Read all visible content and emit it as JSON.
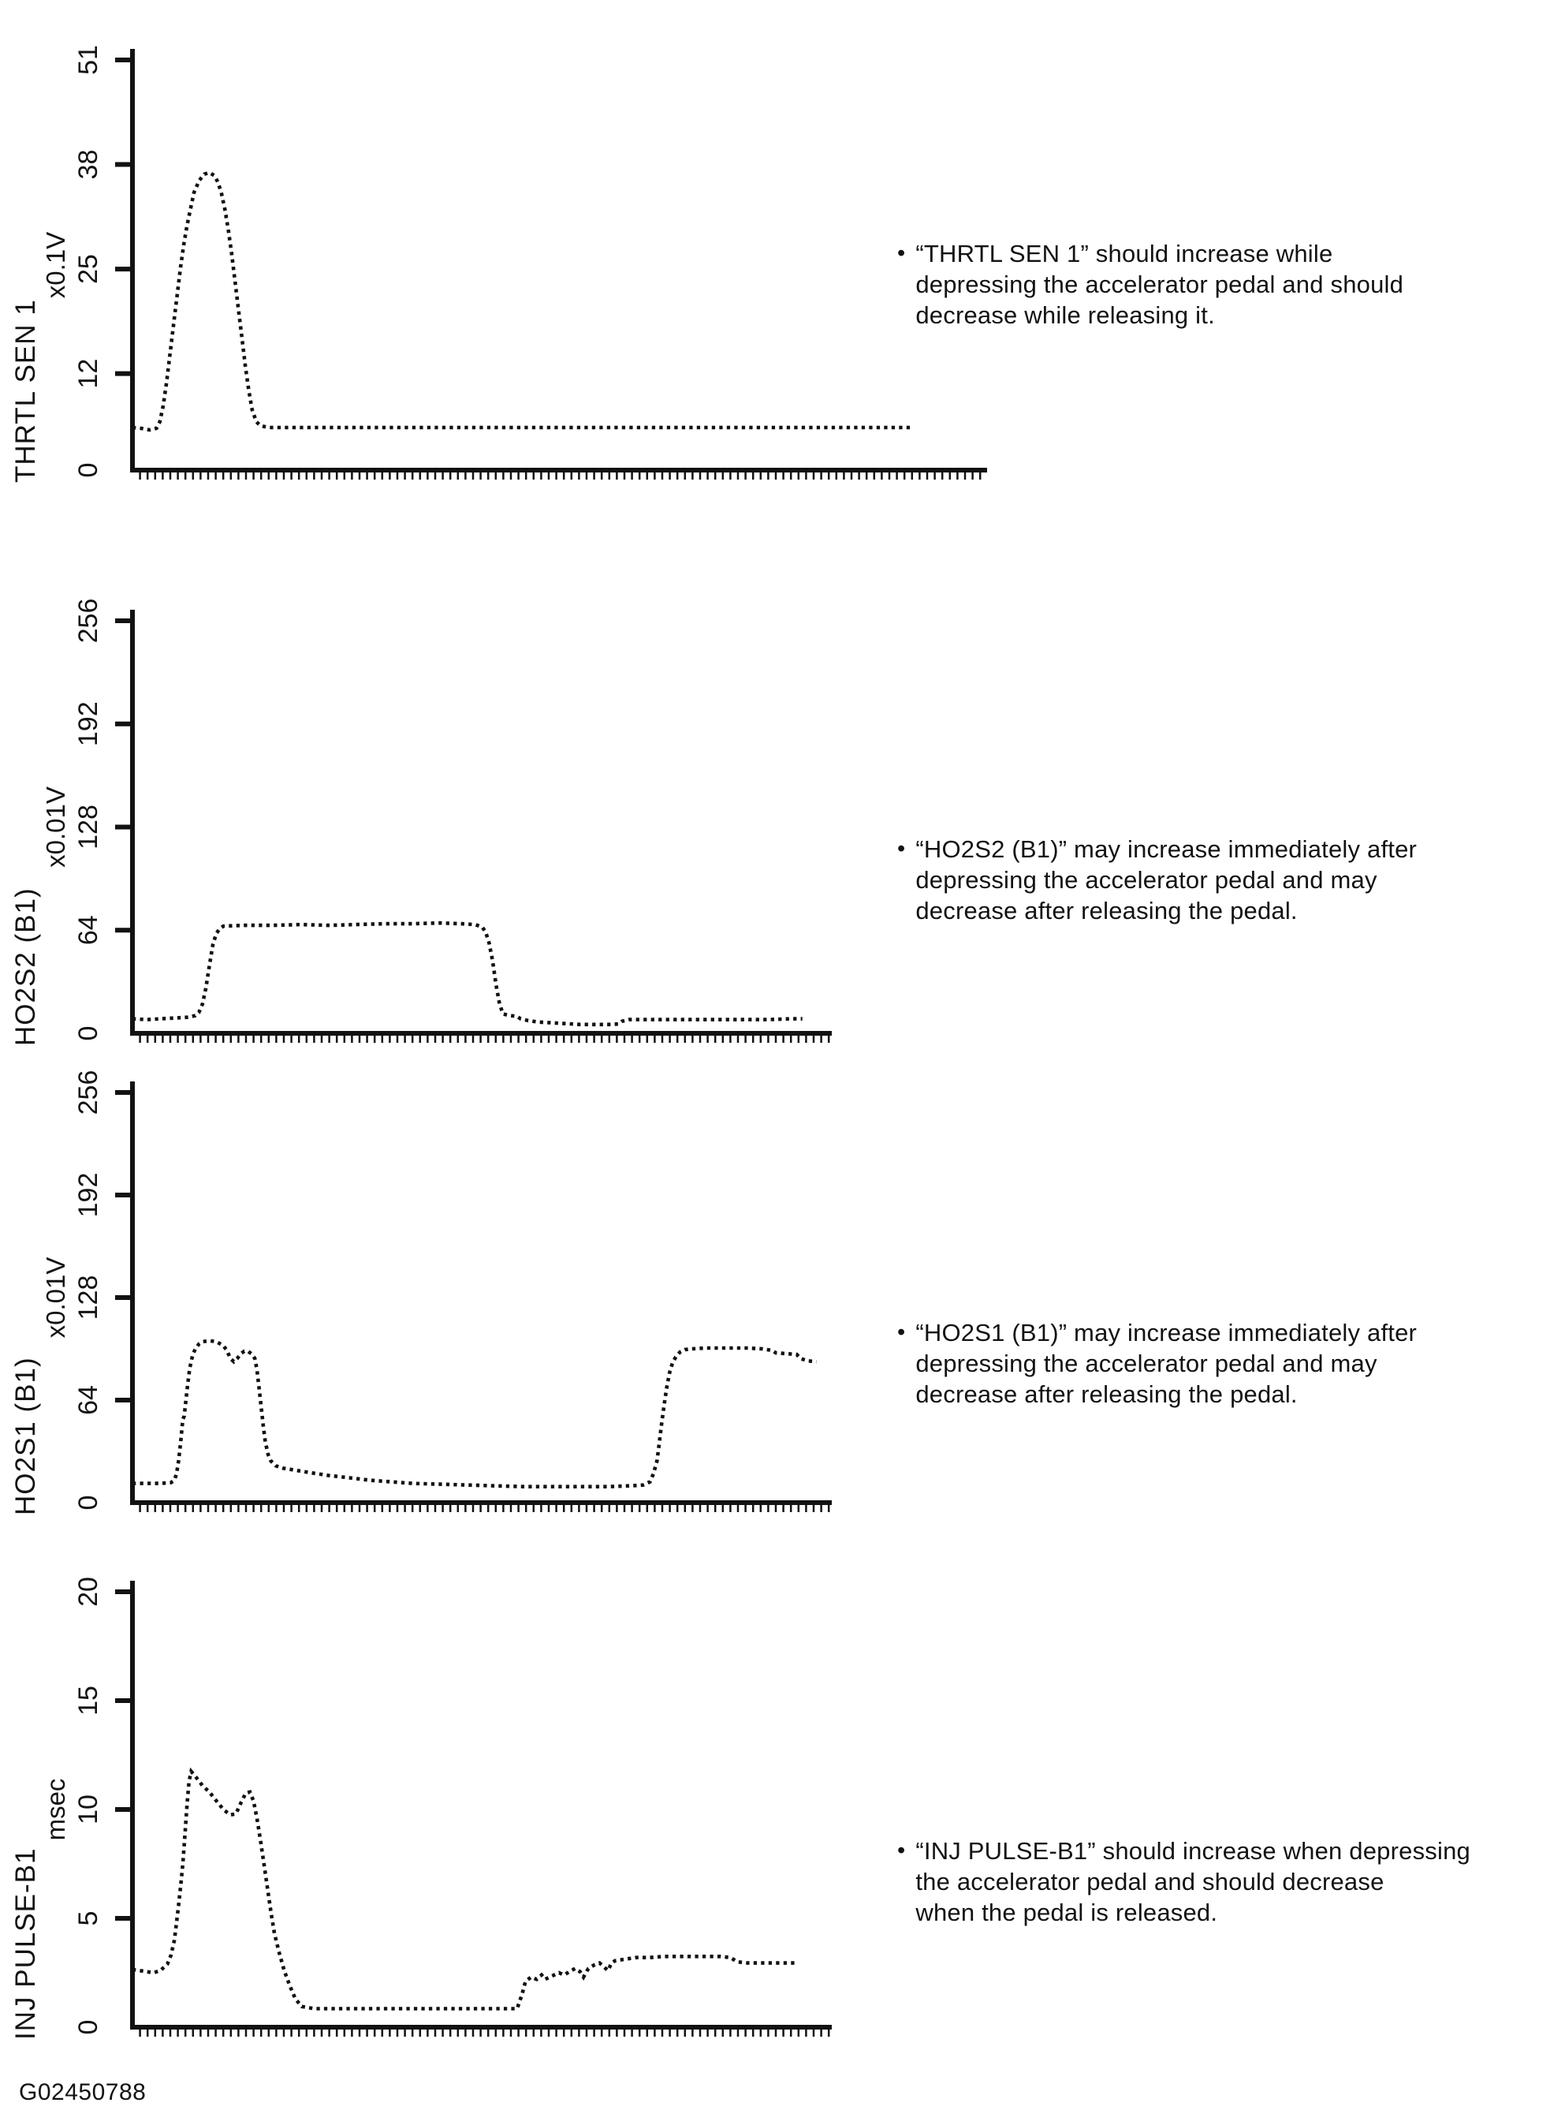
{
  "figure_code": "G02450788",
  "bullet_glyph": "•",
  "chart_data": [
    {
      "type": "line",
      "style": "dotted",
      "param": "THRTL SEN 1",
      "unit": "x0.1V",
      "ylabel": "THRTL SEN 1",
      "y_ticks": [
        0,
        12,
        25,
        38,
        51
      ],
      "ylim": [
        0,
        51
      ],
      "xlabel": "",
      "x_axis": "unlabeled time axis with minor ticks",
      "grid": "off",
      "annotation_lines": [
        "“THRTL SEN 1” should increase while",
        "depressing the accelerator pedal and should",
        "decrease while releasing it."
      ],
      "points": [
        [
          0,
          5.3
        ],
        [
          0.01,
          5.2
        ],
        [
          0.02,
          5.0
        ],
        [
          0.028,
          5.2
        ],
        [
          0.032,
          6
        ],
        [
          0.036,
          8
        ],
        [
          0.04,
          11
        ],
        [
          0.044,
          14.5
        ],
        [
          0.048,
          18
        ],
        [
          0.052,
          21.5
        ],
        [
          0.056,
          25
        ],
        [
          0.06,
          28
        ],
        [
          0.064,
          30.5
        ],
        [
          0.068,
          32.5
        ],
        [
          0.072,
          34.5
        ],
        [
          0.078,
          36
        ],
        [
          0.084,
          36.8
        ],
        [
          0.09,
          37
        ],
        [
          0.096,
          36.6
        ],
        [
          0.1,
          35.8
        ],
        [
          0.104,
          34.5
        ],
        [
          0.108,
          32.5
        ],
        [
          0.112,
          30
        ],
        [
          0.116,
          27
        ],
        [
          0.12,
          23.5
        ],
        [
          0.124,
          20
        ],
        [
          0.128,
          16.5
        ],
        [
          0.132,
          13
        ],
        [
          0.136,
          10
        ],
        [
          0.14,
          7.5
        ],
        [
          0.145,
          6
        ],
        [
          0.15,
          5.5
        ],
        [
          0.16,
          5.3
        ],
        [
          0.3,
          5.3
        ],
        [
          0.5,
          5.3
        ],
        [
          0.7,
          5.3
        ],
        [
          0.913,
          5.3
        ]
      ]
    },
    {
      "type": "line",
      "style": "dotted",
      "param": "HO2S2 (B1)",
      "unit": "x0.01V",
      "ylabel": "HO2S2 (B1)",
      "y_ticks": [
        0,
        64,
        128,
        192,
        256
      ],
      "ylim": [
        0,
        256
      ],
      "xlabel": "",
      "x_axis": "unlabeled time axis with minor ticks",
      "grid": "off",
      "annotation_lines": [
        "“HO2S2 (B1)” may increase immediately after",
        "depressing the accelerator pedal and may",
        "decrease after releasing the pedal."
      ],
      "points": [
        [
          0,
          9
        ],
        [
          0.02,
          8.5
        ],
        [
          0.04,
          9
        ],
        [
          0.06,
          9.5
        ],
        [
          0.08,
          10
        ],
        [
          0.09,
          11
        ],
        [
          0.095,
          13
        ],
        [
          0.1,
          18
        ],
        [
          0.105,
          28
        ],
        [
          0.11,
          42
        ],
        [
          0.115,
          55
        ],
        [
          0.12,
          62
        ],
        [
          0.125,
          65
        ],
        [
          0.13,
          66.5
        ],
        [
          0.16,
          67
        ],
        [
          0.2,
          67
        ],
        [
          0.24,
          67.5
        ],
        [
          0.28,
          67
        ],
        [
          0.32,
          67.5
        ],
        [
          0.36,
          68
        ],
        [
          0.4,
          68
        ],
        [
          0.44,
          68.5
        ],
        [
          0.47,
          68
        ],
        [
          0.49,
          67.5
        ],
        [
          0.5,
          66
        ],
        [
          0.505,
          63
        ],
        [
          0.51,
          56
        ],
        [
          0.515,
          45
        ],
        [
          0.52,
          30
        ],
        [
          0.525,
          18
        ],
        [
          0.53,
          12
        ],
        [
          0.54,
          11
        ],
        [
          0.55,
          10.5
        ],
        [
          0.555,
          9
        ],
        [
          0.565,
          8
        ],
        [
          0.58,
          7
        ],
        [
          0.6,
          6.5
        ],
        [
          0.62,
          6
        ],
        [
          0.64,
          5.5
        ],
        [
          0.66,
          5.5
        ],
        [
          0.68,
          5.5
        ],
        [
          0.695,
          5.8
        ],
        [
          0.7,
          7.5
        ],
        [
          0.71,
          8.5
        ],
        [
          0.73,
          8.5
        ],
        [
          0.76,
          8.5
        ],
        [
          0.79,
          8.5
        ],
        [
          0.82,
          8.5
        ],
        [
          0.85,
          8.5
        ],
        [
          0.88,
          8.5
        ],
        [
          0.91,
          8.5
        ],
        [
          0.94,
          9
        ],
        [
          0.958,
          9
        ]
      ]
    },
    {
      "type": "line",
      "style": "dotted",
      "param": "HO2S1 (B1)",
      "unit": "x0.01V",
      "ylabel": "HO2S1 (B1)",
      "y_ticks": [
        0,
        64,
        128,
        192,
        256
      ],
      "ylim": [
        0,
        256
      ],
      "xlabel": "",
      "x_axis": "unlabeled time axis with minor ticks",
      "grid": "off",
      "annotation_lines": [
        "“HO2S1 (B1)” may increase immediately after",
        "depressing the accelerator pedal and may",
        "decrease after releasing the pedal."
      ],
      "points": [
        [
          0,
          12
        ],
        [
          0.02,
          12
        ],
        [
          0.04,
          12
        ],
        [
          0.055,
          12.5
        ],
        [
          0.06,
          14
        ],
        [
          0.063,
          18
        ],
        [
          0.066,
          26
        ],
        [
          0.069,
          38
        ],
        [
          0.072,
          52
        ],
        [
          0.074,
          54
        ],
        [
          0.076,
          62
        ],
        [
          0.079,
          74
        ],
        [
          0.082,
          84
        ],
        [
          0.086,
          92
        ],
        [
          0.09,
          96
        ],
        [
          0.095,
          99
        ],
        [
          0.1,
          100.5
        ],
        [
          0.11,
          101
        ],
        [
          0.12,
          100.5
        ],
        [
          0.13,
          98
        ],
        [
          0.135,
          95
        ],
        [
          0.14,
          90
        ],
        [
          0.145,
          88
        ],
        [
          0.15,
          90
        ],
        [
          0.155,
          93
        ],
        [
          0.16,
          94.5
        ],
        [
          0.165,
          94.5
        ],
        [
          0.17,
          93
        ],
        [
          0.175,
          90
        ],
        [
          0.178,
          83
        ],
        [
          0.181,
          72
        ],
        [
          0.184,
          60
        ],
        [
          0.187,
          48
        ],
        [
          0.19,
          38
        ],
        [
          0.194,
          30
        ],
        [
          0.198,
          26
        ],
        [
          0.205,
          23
        ],
        [
          0.215,
          21.5
        ],
        [
          0.23,
          20.5
        ],
        [
          0.25,
          19
        ],
        [
          0.28,
          17
        ],
        [
          0.31,
          15.5
        ],
        [
          0.34,
          14
        ],
        [
          0.37,
          13
        ],
        [
          0.4,
          12
        ],
        [
          0.44,
          11.5
        ],
        [
          0.48,
          11
        ],
        [
          0.52,
          10.5
        ],
        [
          0.56,
          10
        ],
        [
          0.6,
          10
        ],
        [
          0.64,
          10
        ],
        [
          0.68,
          10
        ],
        [
          0.71,
          10.5
        ],
        [
          0.73,
          11
        ],
        [
          0.74,
          13
        ],
        [
          0.745,
          18
        ],
        [
          0.75,
          26
        ],
        [
          0.753,
          36
        ],
        [
          0.756,
          47
        ],
        [
          0.76,
          60
        ],
        [
          0.764,
          72
        ],
        [
          0.768,
          81
        ],
        [
          0.772,
          87
        ],
        [
          0.777,
          91
        ],
        [
          0.783,
          94
        ],
        [
          0.79,
          95.5
        ],
        [
          0.8,
          96
        ],
        [
          0.82,
          96.5
        ],
        [
          0.84,
          96.5
        ],
        [
          0.86,
          96.5
        ],
        [
          0.88,
          96.5
        ],
        [
          0.9,
          96
        ],
        [
          0.915,
          95
        ],
        [
          0.92,
          93.5
        ],
        [
          0.935,
          93
        ],
        [
          0.95,
          92.5
        ],
        [
          0.955,
          90
        ],
        [
          0.965,
          88.5
        ],
        [
          0.978,
          88
        ]
      ]
    },
    {
      "type": "line",
      "style": "dotted",
      "param": "INJ PULSE-B1",
      "unit": "msec",
      "ylabel": "INJ PULSE-B1",
      "y_ticks": [
        0,
        5,
        10,
        15,
        20
      ],
      "ylim": [
        0,
        20
      ],
      "xlabel": "",
      "x_axis": "unlabeled time axis with minor ticks",
      "grid": "off",
      "annotation_lines": [
        "“INJ PULSE-B1” should increase when depressing",
        "the accelerator pedal and should decrease",
        "when the pedal is released."
      ],
      "points": [
        [
          0,
          2.65
        ],
        [
          0.01,
          2.6
        ],
        [
          0.02,
          2.55
        ],
        [
          0.03,
          2.5
        ],
        [
          0.04,
          2.6
        ],
        [
          0.05,
          2.9
        ],
        [
          0.055,
          3.3
        ],
        [
          0.06,
          4.0
        ],
        [
          0.063,
          4.8
        ],
        [
          0.066,
          5.6
        ],
        [
          0.069,
          6.5
        ],
        [
          0.072,
          7.5
        ],
        [
          0.075,
          8.8
        ],
        [
          0.078,
          10.2
        ],
        [
          0.081,
          11.3
        ],
        [
          0.084,
          11.75
        ],
        [
          0.088,
          11.6
        ],
        [
          0.093,
          11.4
        ],
        [
          0.1,
          11.1
        ],
        [
          0.11,
          10.8
        ],
        [
          0.12,
          10.4
        ],
        [
          0.13,
          10.0
        ],
        [
          0.14,
          9.75
        ],
        [
          0.148,
          9.8
        ],
        [
          0.155,
          10.3
        ],
        [
          0.162,
          10.75
        ],
        [
          0.168,
          10.8
        ],
        [
          0.173,
          10.4
        ],
        [
          0.178,
          9.6
        ],
        [
          0.183,
          8.6
        ],
        [
          0.188,
          7.5
        ],
        [
          0.193,
          6.4
        ],
        [
          0.198,
          5.3
        ],
        [
          0.203,
          4.3
        ],
        [
          0.21,
          3.4
        ],
        [
          0.217,
          2.6
        ],
        [
          0.225,
          1.9
        ],
        [
          0.233,
          1.3
        ],
        [
          0.242,
          0.95
        ],
        [
          0.26,
          0.85
        ],
        [
          0.3,
          0.85
        ],
        [
          0.35,
          0.85
        ],
        [
          0.4,
          0.85
        ],
        [
          0.45,
          0.85
        ],
        [
          0.5,
          0.85
        ],
        [
          0.55,
          0.85
        ],
        [
          0.557,
          1.5
        ],
        [
          0.562,
          2.1
        ],
        [
          0.57,
          2.3
        ],
        [
          0.578,
          2.2
        ],
        [
          0.585,
          2.4
        ],
        [
          0.59,
          2.2
        ],
        [
          0.6,
          2.35
        ],
        [
          0.61,
          2.5
        ],
        [
          0.617,
          2.4
        ],
        [
          0.625,
          2.55
        ],
        [
          0.633,
          2.7
        ],
        [
          0.64,
          2.55
        ],
        [
          0.645,
          2.3
        ],
        [
          0.652,
          2.7
        ],
        [
          0.66,
          2.85
        ],
        [
          0.668,
          2.95
        ],
        [
          0.673,
          2.8
        ],
        [
          0.68,
          2.6
        ],
        [
          0.685,
          2.95
        ],
        [
          0.69,
          3.05
        ],
        [
          0.7,
          3.1
        ],
        [
          0.72,
          3.2
        ],
        [
          0.74,
          3.2
        ],
        [
          0.76,
          3.25
        ],
        [
          0.78,
          3.25
        ],
        [
          0.8,
          3.25
        ],
        [
          0.82,
          3.25
        ],
        [
          0.84,
          3.25
        ],
        [
          0.855,
          3.2
        ],
        [
          0.865,
          3.0
        ],
        [
          0.88,
          2.95
        ],
        [
          0.9,
          2.95
        ],
        [
          0.92,
          2.95
        ],
        [
          0.947,
          2.95
        ]
      ]
    }
  ]
}
